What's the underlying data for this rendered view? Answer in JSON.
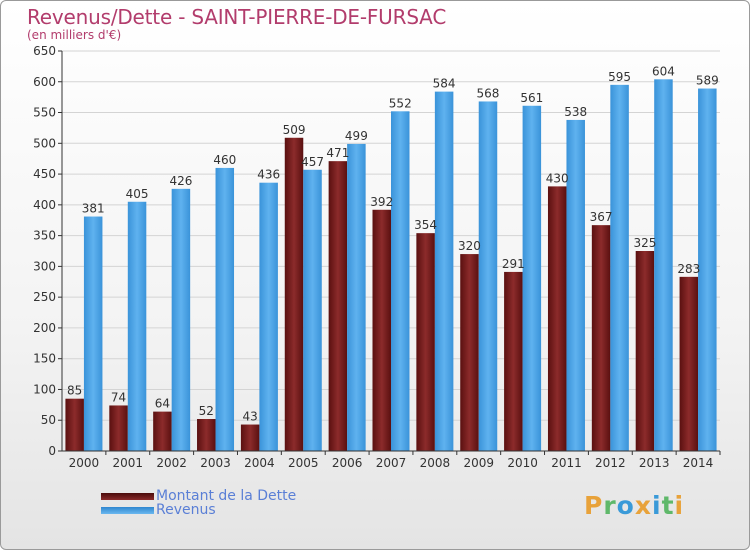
{
  "header": {
    "title": "Revenus/Dette - SAINT-PIERRE-DE-FURSAC",
    "subtitle": "(en milliers d'€)"
  },
  "legend": {
    "items": [
      {
        "label": "Montant de la Dette",
        "color": "#6b1a1a"
      },
      {
        "label": "Revenus",
        "color": "#3d9ae0"
      }
    ]
  },
  "logo": {
    "text": "Proxiti",
    "colors": [
      "#e8a23a",
      "#5fb86a",
      "#3a9ad8",
      "#e8a23a",
      "#3a9ad8",
      "#5fb86a",
      "#e8a23a"
    ]
  },
  "colors": {
    "dette": "#7a1f1f",
    "revenus": "#4aa3e6",
    "axis": "#333333",
    "grid": "#d4d4d4"
  },
  "chart_data": {
    "type": "bar",
    "categories": [
      "2000",
      "2001",
      "2002",
      "2003",
      "2004",
      "2005",
      "2006",
      "2007",
      "2008",
      "2009",
      "2010",
      "2011",
      "2012",
      "2013",
      "2014"
    ],
    "series": [
      {
        "name": "Montant de la Dette",
        "values": [
          85,
          74,
          64,
          52,
          43,
          509,
          471,
          392,
          354,
          320,
          291,
          430,
          367,
          325,
          283
        ]
      },
      {
        "name": "Revenus",
        "values": [
          381,
          405,
          426,
          460,
          436,
          457,
          499,
          552,
          584,
          568,
          561,
          538,
          595,
          604,
          589
        ]
      }
    ],
    "labels": {
      "dette": [
        "85",
        "74",
        "64",
        "52",
        "43",
        "509",
        "471",
        "392",
        "354",
        "320",
        "291",
        "430",
        "367",
        "325",
        "283"
      ],
      "revenus": [
        "381",
        "405",
        "426",
        "460",
        "436",
        "457",
        "499",
        "552",
        "584",
        "568",
        "561",
        "538",
        "595",
        "604",
        "589"
      ]
    },
    "title": "Revenus/Dette - SAINT-PIERRE-DE-FURSAC",
    "ylabel": "(en milliers d'€)",
    "ylim": [
      0,
      650
    ],
    "yticks": [
      "0",
      "50",
      "100",
      "150",
      "200",
      "250",
      "300",
      "350",
      "400",
      "450",
      "500",
      "550",
      "600",
      "650"
    ],
    "grid": true,
    "legend_position": "bottom-left"
  }
}
